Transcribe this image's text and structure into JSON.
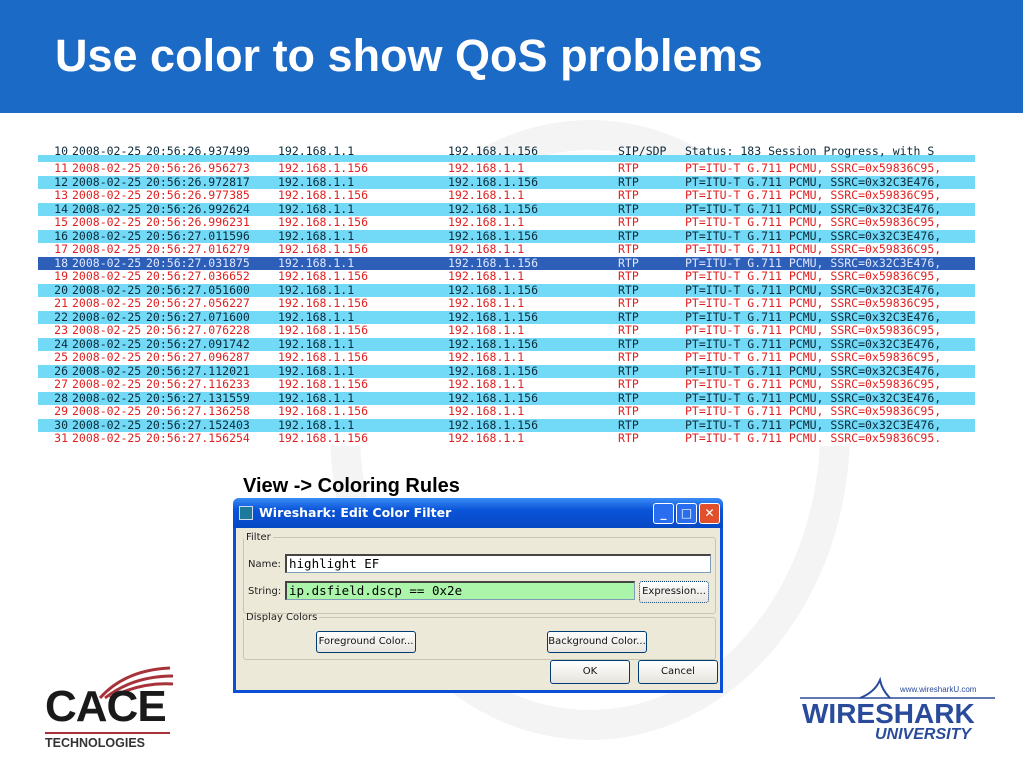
{
  "slide": {
    "title": "Use color to show QoS problems",
    "caption": "View -> Coloring Rules"
  },
  "colors": {
    "header": "#1a6ac6",
    "odd_row_bg": "#ffffff",
    "odd_row_fg": "#e02020",
    "even_row_bg": "#72daf7",
    "even_row_fg": "#0a2a3a",
    "selected_bg": "#2e5fb8",
    "filter_string_bg": "#aaf5aa"
  },
  "packets": [
    {
      "no": "10",
      "date": "2008-02-25",
      "time": "20:56:26.937499",
      "src": "192.168.1.1",
      "dst": "192.168.1.156",
      "proto": "SIP/SDP",
      "info": "Status: 183 Session Progress, with S",
      "style": "even",
      "partial": true
    },
    {
      "no": "11",
      "date": "2008-02-25",
      "time": "20:56:26.956273",
      "src": "192.168.1.156",
      "dst": "192.168.1.1",
      "proto": "RTP",
      "info": "PT=ITU-T G.711 PCMU, SSRC=0x59836C95,",
      "style": "odd"
    },
    {
      "no": "12",
      "date": "2008-02-25",
      "time": "20:56:26.972817",
      "src": "192.168.1.1",
      "dst": "192.168.1.156",
      "proto": "RTP",
      "info": "PT=ITU-T G.711 PCMU, SSRC=0x32C3E476,",
      "style": "even"
    },
    {
      "no": "13",
      "date": "2008-02-25",
      "time": "20:56:26.977385",
      "src": "192.168.1.156",
      "dst": "192.168.1.1",
      "proto": "RTP",
      "info": "PT=ITU-T G.711 PCMU, SSRC=0x59836C95,",
      "style": "odd"
    },
    {
      "no": "14",
      "date": "2008-02-25",
      "time": "20:56:26.992624",
      "src": "192.168.1.1",
      "dst": "192.168.1.156",
      "proto": "RTP",
      "info": "PT=ITU-T G.711 PCMU, SSRC=0x32C3E476,",
      "style": "even"
    },
    {
      "no": "15",
      "date": "2008-02-25",
      "time": "20:56:26.996231",
      "src": "192.168.1.156",
      "dst": "192.168.1.1",
      "proto": "RTP",
      "info": "PT=ITU-T G.711 PCMU, SSRC=0x59836C95,",
      "style": "odd"
    },
    {
      "no": "16",
      "date": "2008-02-25",
      "time": "20:56:27.011596",
      "src": "192.168.1.1",
      "dst": "192.168.1.156",
      "proto": "RTP",
      "info": "PT=ITU-T G.711 PCMU, SSRC=0x32C3E476,",
      "style": "even"
    },
    {
      "no": "17",
      "date": "2008-02-25",
      "time": "20:56:27.016279",
      "src": "192.168.1.156",
      "dst": "192.168.1.1",
      "proto": "RTP",
      "info": "PT=ITU-T G.711 PCMU, SSRC=0x59836C95,",
      "style": "odd"
    },
    {
      "no": "18",
      "date": "2008-02-25",
      "time": "20:56:27.031875",
      "src": "192.168.1.1",
      "dst": "192.168.1.156",
      "proto": "RTP",
      "info": "PT=ITU-T G.711 PCMU, SSRC=0x32C3E476,",
      "style": "sel"
    },
    {
      "no": "19",
      "date": "2008-02-25",
      "time": "20:56:27.036652",
      "src": "192.168.1.156",
      "dst": "192.168.1.1",
      "proto": "RTP",
      "info": "PT=ITU-T G.711 PCMU, SSRC=0x59836C95,",
      "style": "odd"
    },
    {
      "no": "20",
      "date": "2008-02-25",
      "time": "20:56:27.051600",
      "src": "192.168.1.1",
      "dst": "192.168.1.156",
      "proto": "RTP",
      "info": "PT=ITU-T G.711 PCMU, SSRC=0x32C3E476,",
      "style": "even"
    },
    {
      "no": "21",
      "date": "2008-02-25",
      "time": "20:56:27.056227",
      "src": "192.168.1.156",
      "dst": "192.168.1.1",
      "proto": "RTP",
      "info": "PT=ITU-T G.711 PCMU, SSRC=0x59836C95,",
      "style": "odd"
    },
    {
      "no": "22",
      "date": "2008-02-25",
      "time": "20:56:27.071600",
      "src": "192.168.1.1",
      "dst": "192.168.1.156",
      "proto": "RTP",
      "info": "PT=ITU-T G.711 PCMU, SSRC=0x32C3E476,",
      "style": "even"
    },
    {
      "no": "23",
      "date": "2008-02-25",
      "time": "20:56:27.076228",
      "src": "192.168.1.156",
      "dst": "192.168.1.1",
      "proto": "RTP",
      "info": "PT=ITU-T G.711 PCMU, SSRC=0x59836C95,",
      "style": "odd"
    },
    {
      "no": "24",
      "date": "2008-02-25",
      "time": "20:56:27.091742",
      "src": "192.168.1.1",
      "dst": "192.168.1.156",
      "proto": "RTP",
      "info": "PT=ITU-T G.711 PCMU, SSRC=0x32C3E476,",
      "style": "even"
    },
    {
      "no": "25",
      "date": "2008-02-25",
      "time": "20:56:27.096287",
      "src": "192.168.1.156",
      "dst": "192.168.1.1",
      "proto": "RTP",
      "info": "PT=ITU-T G.711 PCMU, SSRC=0x59836C95,",
      "style": "odd"
    },
    {
      "no": "26",
      "date": "2008-02-25",
      "time": "20:56:27.112021",
      "src": "192.168.1.1",
      "dst": "192.168.1.156",
      "proto": "RTP",
      "info": "PT=ITU-T G.711 PCMU, SSRC=0x32C3E476,",
      "style": "even"
    },
    {
      "no": "27",
      "date": "2008-02-25",
      "time": "20:56:27.116233",
      "src": "192.168.1.156",
      "dst": "192.168.1.1",
      "proto": "RTP",
      "info": "PT=ITU-T G.711 PCMU, SSRC=0x59836C95,",
      "style": "odd"
    },
    {
      "no": "28",
      "date": "2008-02-25",
      "time": "20:56:27.131559",
      "src": "192.168.1.1",
      "dst": "192.168.1.156",
      "proto": "RTP",
      "info": "PT=ITU-T G.711 PCMU, SSRC=0x32C3E476,",
      "style": "even"
    },
    {
      "no": "29",
      "date": "2008-02-25",
      "time": "20:56:27.136258",
      "src": "192.168.1.156",
      "dst": "192.168.1.1",
      "proto": "RTP",
      "info": "PT=ITU-T G.711 PCMU, SSRC=0x59836C95,",
      "style": "odd"
    },
    {
      "no": "30",
      "date": "2008-02-25",
      "time": "20:56:27.152403",
      "src": "192.168.1.1",
      "dst": "192.168.1.156",
      "proto": "RTP",
      "info": "PT=ITU-T G.711 PCMU, SSRC=0x32C3E476,",
      "style": "even"
    },
    {
      "no": "31",
      "date": "2008-02-25",
      "time": "20:56:27.156254",
      "src": "192.168.1.156",
      "dst": "192.168.1.1",
      "proto": "RTP",
      "info": "PT=ITU-T G.711 PCMU. SSRC=0x59836C95.",
      "style": "odd"
    }
  ],
  "dialog": {
    "title": "Wireshark: Edit Color Filter",
    "minimize": "_",
    "maximize": "□",
    "close": "✕",
    "filter_group": "Filter",
    "name_label": "Name:",
    "name_value": "highlight EF",
    "string_label": "String:",
    "string_value": "ip.dsfield.dscp == 0x2e",
    "expression_button": "Expression...",
    "display_group": "Display Colors",
    "foreground_button": "Foreground Color...",
    "background_button": "Background Color...",
    "ok_button": "OK",
    "cancel_button": "Cancel"
  },
  "logos": {
    "cace_main": "CACE",
    "cace_sub": "TECHNOLOGIES",
    "ws_url": "www.wiresharkU.com",
    "ws_main": "WIRESHARK",
    "ws_sub": "UNIVERSITY"
  }
}
